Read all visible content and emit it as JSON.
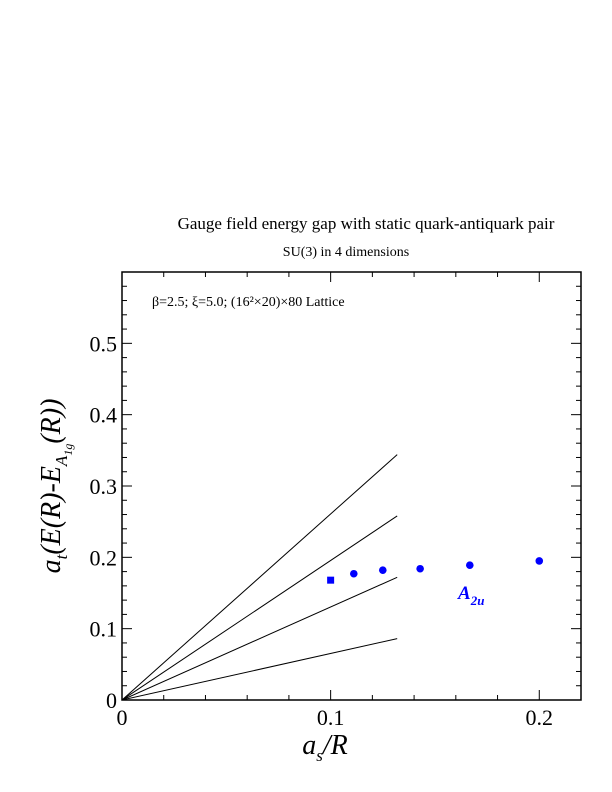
{
  "chart_data": {
    "type": "scatter",
    "title": "Gauge field energy gap with static quark-antiquark pair",
    "subtitle": "SU(3) in 4 dimensions",
    "annotation": "β=2.5; ξ=5.0; (16²×20)×80 Lattice",
    "xlabel": "a_s/R",
    "ylabel": "a_t(E(R)-E_A1g(R))",
    "xlim": [
      0,
      0.22
    ],
    "ylim": [
      0,
      0.6
    ],
    "xticks": [
      0,
      0.1,
      0.2
    ],
    "xtick_labels": [
      "0",
      "0.1",
      "0.2"
    ],
    "yticks": [
      0,
      0.1,
      0.2,
      0.3,
      0.4,
      0.5
    ],
    "ytick_labels": [
      "0",
      "0.1",
      "0.2",
      "0.3",
      "0.4",
      "0.5"
    ],
    "grid": false,
    "series": [
      {
        "name": "A2u",
        "color": "#0000ff",
        "marker": "circle",
        "points": [
          {
            "x": 0.1111,
            "y": 0.177
          },
          {
            "x": 0.125,
            "y": 0.182
          },
          {
            "x": 0.1429,
            "y": 0.184
          },
          {
            "x": 0.1667,
            "y": 0.189
          },
          {
            "x": 0.2,
            "y": 0.195
          }
        ]
      },
      {
        "name": "",
        "color": "#0000ff",
        "marker": "square",
        "points": [
          {
            "x": 0.1,
            "y": 0.168
          }
        ]
      }
    ],
    "reference_lines": [
      {
        "x": [
          0,
          0.1319
        ],
        "y": [
          0,
          0.344
        ]
      },
      {
        "x": [
          0,
          0.1319
        ],
        "y": [
          0,
          0.258
        ]
      },
      {
        "x": [
          0,
          0.1319
        ],
        "y": [
          0,
          0.172
        ]
      },
      {
        "x": [
          0,
          0.1319
        ],
        "y": [
          0,
          0.086
        ]
      }
    ]
  }
}
